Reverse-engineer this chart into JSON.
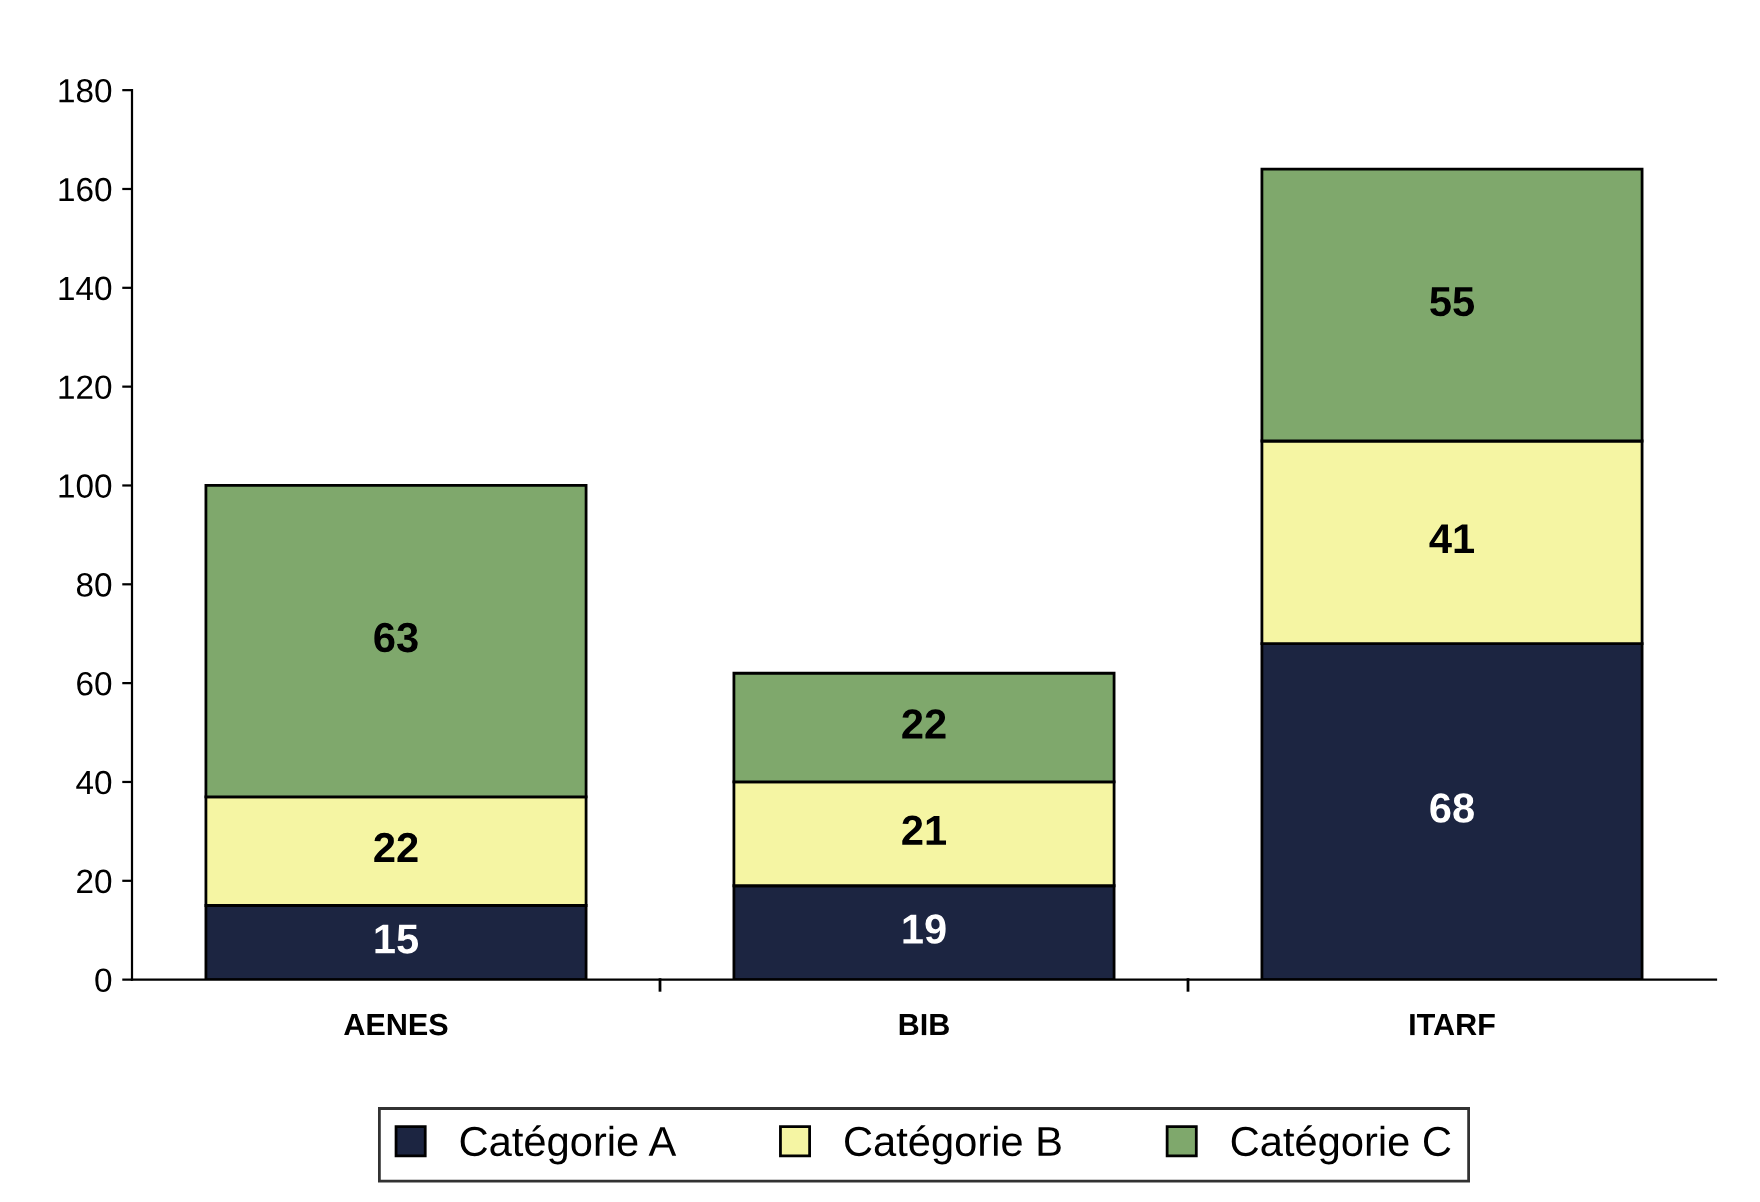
{
  "chart_data": {
    "type": "bar",
    "stacked": true,
    "categories": [
      "AENES",
      "BIB",
      "ITARF"
    ],
    "series": [
      {
        "name": "Catégorie A",
        "color": "#1c2541",
        "values": [
          15,
          19,
          68
        ]
      },
      {
        "name": "Catégorie B",
        "color": "#f5f5a3",
        "values": [
          22,
          21,
          41
        ]
      },
      {
        "name": "Catégorie C",
        "color": "#7fa86c",
        "values": [
          63,
          22,
          55
        ]
      }
    ],
    "ylim": [
      0,
      180
    ],
    "yticks": [
      0,
      20,
      40,
      60,
      80,
      100,
      120,
      140,
      160,
      180
    ],
    "grid": false,
    "legend": "bottom",
    "data_labels": true
  }
}
